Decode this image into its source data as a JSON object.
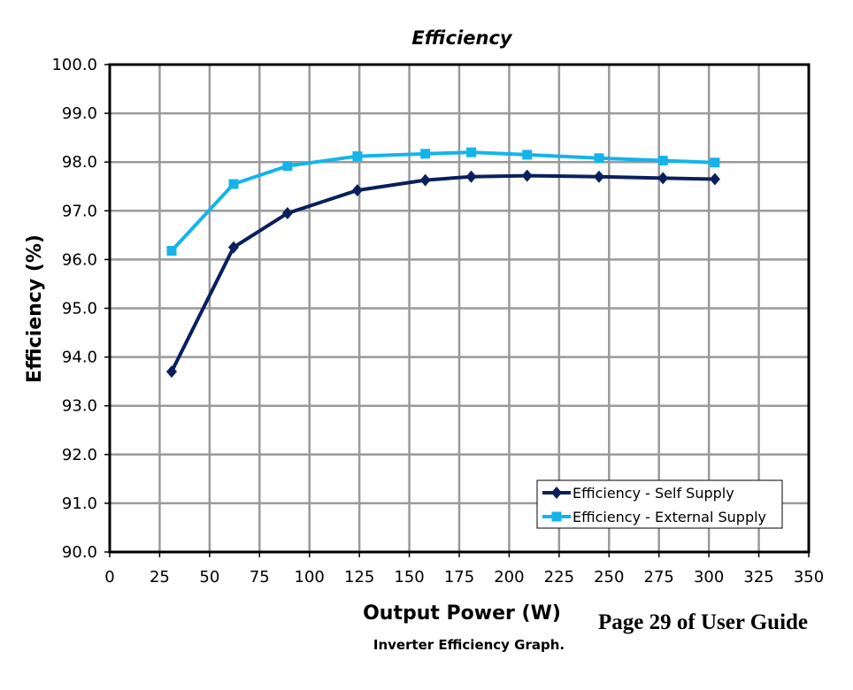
{
  "chart_data": {
    "type": "line",
    "title": "Efficiency",
    "xlabel": "Output Power (W)",
    "ylabel": "Efficiency (%)",
    "xlim": [
      0,
      350
    ],
    "ylim": [
      90.0,
      100.0
    ],
    "x_ticks": [
      0,
      25,
      50,
      75,
      100,
      125,
      150,
      175,
      200,
      225,
      250,
      275,
      300,
      325,
      350
    ],
    "y_ticks": [
      "90.0",
      "91.0",
      "92.0",
      "93.0",
      "94.0",
      "95.0",
      "96.0",
      "97.0",
      "98.0",
      "99.0",
      "100.0"
    ],
    "grid": true,
    "legend_position": "bottom-right",
    "series": [
      {
        "name": "Efficiency - Self Supply",
        "color": "#0a1f5c",
        "marker": "diamond",
        "x": [
          31,
          62,
          89,
          124,
          158,
          181,
          209,
          245,
          277,
          303
        ],
        "y": [
          93.7,
          96.25,
          96.95,
          97.42,
          97.63,
          97.7,
          97.72,
          97.7,
          97.67,
          97.65
        ]
      },
      {
        "name": "Efficiency - External Supply",
        "color": "#14b4ea",
        "marker": "square",
        "x": [
          31,
          62,
          89,
          124,
          158,
          181,
          209,
          245,
          277,
          303
        ],
        "y": [
          96.18,
          97.55,
          97.92,
          98.12,
          98.17,
          98.2,
          98.15,
          98.08,
          98.03,
          97.99
        ]
      }
    ]
  },
  "caption": "Inverter Efficiency Graph.",
  "page_note": "Page 29 of User Guide"
}
